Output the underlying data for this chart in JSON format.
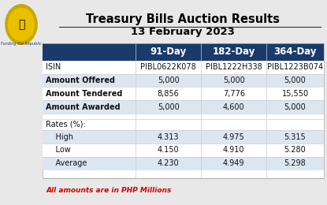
{
  "title_line1": "Treasury Bills Auction Results",
  "title_line2": "13 February 2023",
  "header_bg": "#1a3a6b",
  "header_text_color": "#ffffff",
  "col_headers": [
    "91-Day",
    "182-Day",
    "364-Day"
  ],
  "row_labels": [
    "ISIN",
    "Amount Offered",
    "Amount Tendered",
    "Amount Awarded",
    "",
    "Rates (%):",
    "    High",
    "    Low",
    "    Average"
  ],
  "data": [
    [
      "PIBL0622K078",
      "PIBL1222H338",
      "PIBL1223B074"
    ],
    [
      "5,000",
      "5,000",
      "5,000"
    ],
    [
      "8,856",
      "7,776",
      "15,550"
    ],
    [
      "5,000",
      "4,600",
      "5,000"
    ],
    [
      "",
      "",
      ""
    ],
    [
      "",
      "",
      ""
    ],
    [
      "4.313",
      "4.975",
      "5.315"
    ],
    [
      "4.150",
      "4.910",
      "5.280"
    ],
    [
      "4.230",
      "4.949",
      "5.298"
    ]
  ],
  "row_bg_odd": "#dce6f1",
  "row_bg_even": "#ffffff",
  "row_bg_section": "#e8f0f8",
  "footer_text": "All amounts are in PHP Millions",
  "footer_color": "#cc0000",
  "background_color": "#ffffff",
  "outer_bg": "#e8e8e8",
  "bold_rows": [
    0,
    1,
    2,
    3
  ],
  "italic_rows": []
}
